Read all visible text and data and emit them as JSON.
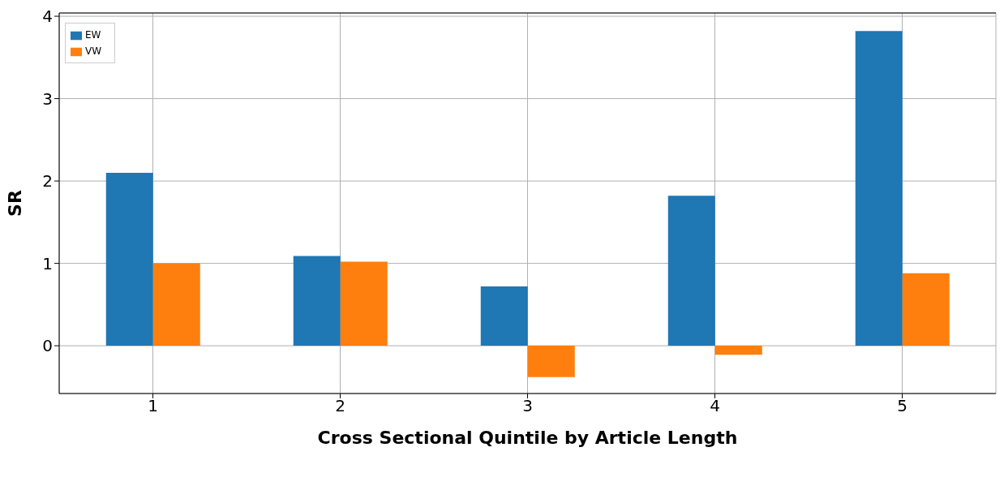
{
  "chart_data": {
    "type": "bar",
    "xlabel": "Cross Sectional Quintile by Article Length",
    "ylabel": "SR",
    "categories": [
      "1",
      "2",
      "3",
      "4",
      "5"
    ],
    "series": [
      {
        "name": "EW",
        "color": "#1f77b4",
        "values": [
          2.1,
          1.09,
          0.72,
          1.82,
          3.82
        ]
      },
      {
        "name": "VW",
        "color": "#ff7f0e",
        "values": [
          1.0,
          1.02,
          -0.38,
          -0.11,
          0.88
        ]
      }
    ],
    "ylim": [
      -0.58,
      4.04
    ],
    "yticks": [
      0,
      1,
      2,
      3,
      4
    ],
    "grid": true,
    "legend": "top left"
  }
}
